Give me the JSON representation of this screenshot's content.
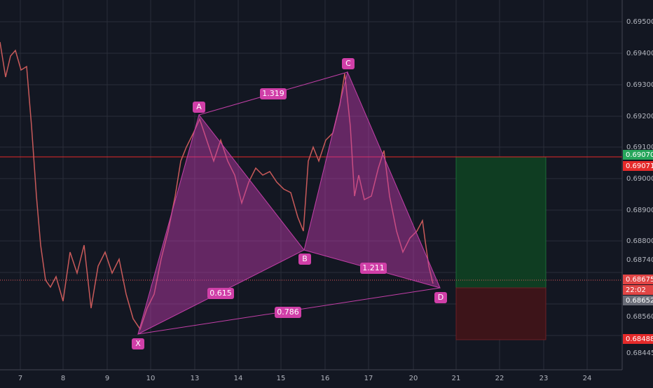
{
  "price_axis": {
    "labels": [
      "0.69500",
      "0.69400",
      "0.69300",
      "0.69200",
      "0.69100",
      "0.69000",
      "0.68900",
      "0.68800",
      "0.68740",
      "0.68560",
      "0.68445"
    ]
  },
  "time_axis": {
    "labels": [
      "7",
      "8",
      "9",
      "10",
      "13",
      "14",
      "15",
      "16",
      "17",
      "20",
      "21",
      "22",
      "23",
      "24"
    ]
  },
  "price_tags": [
    "0.69070",
    "0.69071",
    "0.68675",
    "22:02",
    "0.68652",
    "0.68488"
  ],
  "pattern": {
    "points": [
      "X",
      "A",
      "B",
      "C",
      "D"
    ],
    "ratios": [
      "1.319",
      "0.615",
      "1.211",
      "0.786"
    ]
  }
}
